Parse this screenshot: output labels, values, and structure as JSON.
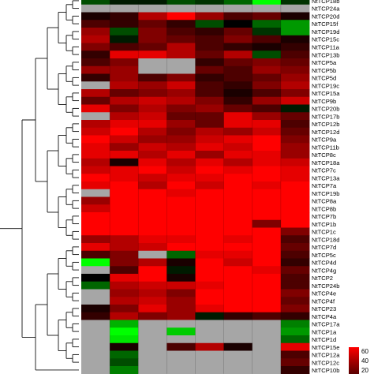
{
  "chart_data": {
    "type": "heatmap",
    "title": "",
    "xlabel": "",
    "ylabel": "",
    "missing_color": "#a6a6a6",
    "color_scale": {
      "low": "#00ff00",
      "mid": "#000000",
      "high": "#ff0000"
    },
    "legend": {
      "placement": "bottom-right",
      "ticks": [
        "60",
        "40",
        "20"
      ]
    },
    "rows": [
      {
        "label": "NtTCP18b",
        "values": [
          -0.3,
          -0.1,
          -0.1,
          -0.3,
          -0.2,
          -0.4,
          -1.0,
          -0.2
        ]
      },
      {
        "label": "NtTCP24a",
        "values": [
          null,
          null,
          null,
          null,
          null,
          null,
          null,
          null
        ]
      },
      {
        "label": "NtTCP20d",
        "values": [
          0.1,
          0.2,
          0.7,
          1.0,
          0.6,
          0.3,
          0.4,
          0.1
        ]
      },
      {
        "label": "NtTCP15f",
        "values": [
          0.3,
          0.2,
          0.4,
          0.2,
          -0.3,
          0.0,
          -0.4,
          -0.6
        ]
      },
      {
        "label": "NtTCP19d",
        "values": [
          0.6,
          -0.3,
          0.5,
          0.3,
          0.2,
          0.4,
          -0.2,
          -0.6
        ]
      },
      {
        "label": "NtTCP15c",
        "values": [
          0.7,
          -0.1,
          0.5,
          0.4,
          0.3,
          0.5,
          0.3,
          0.1
        ]
      },
      {
        "label": "NtTCP11a",
        "values": [
          0.5,
          0.3,
          0.4,
          0.7,
          0.3,
          0.2,
          0.1,
          0.2
        ]
      },
      {
        "label": "NtTCP13b",
        "values": [
          0.2,
          0.9,
          0.9,
          0.7,
          0.4,
          0.7,
          -0.3,
          0.3
        ]
      },
      {
        "label": "NtTCP5a",
        "values": [
          0.3,
          0.5,
          null,
          null,
          0.2,
          0.4,
          0.5,
          0.4
        ]
      },
      {
        "label": "NtTCP5b",
        "values": [
          0.6,
          0.6,
          null,
          null,
          0.4,
          0.3,
          0.6,
          0.5
        ]
      },
      {
        "label": "NtTCP5d",
        "values": [
          0.2,
          0.6,
          0.3,
          0.5,
          0.2,
          0.3,
          0.4,
          0.6
        ]
      },
      {
        "label": "NtTCP19c",
        "values": [
          null,
          0.7,
          0.6,
          0.8,
          0.3,
          0.2,
          0.5,
          0.7
        ]
      },
      {
        "label": "NtTCP15a",
        "values": [
          0.7,
          0.4,
          0.5,
          0.6,
          0.3,
          0.1,
          0.3,
          0.5
        ]
      },
      {
        "label": "NtTCP9b",
        "values": [
          0.4,
          0.7,
          0.8,
          0.7,
          0.5,
          0.2,
          0.6,
          0.8
        ]
      },
      {
        "label": "NtTCP20b",
        "values": [
          0.9,
          0.5,
          0.7,
          0.5,
          0.6,
          0.4,
          0.3,
          -0.1
        ]
      },
      {
        "label": "NtTCP17b",
        "values": [
          null,
          0.7,
          0.8,
          0.4,
          0.4,
          0.9,
          0.6,
          0.4
        ]
      },
      {
        "label": "NtTCP12b",
        "values": [
          0.7,
          0.9,
          0.9,
          0.6,
          0.4,
          0.9,
          0.9,
          0.3
        ]
      },
      {
        "label": "NtTCP12d",
        "values": [
          0.8,
          1.0,
          0.7,
          0.5,
          0.7,
          0.6,
          0.8,
          0.4
        ]
      },
      {
        "label": "NtTCP9a",
        "values": [
          1.0,
          0.8,
          0.6,
          0.6,
          0.8,
          0.9,
          1.0,
          0.5
        ]
      },
      {
        "label": "NtTCP11b",
        "values": [
          0.9,
          0.6,
          0.8,
          0.7,
          0.9,
          0.8,
          1.0,
          0.6
        ]
      },
      {
        "label": "NtTCP8c",
        "values": [
          0.9,
          0.9,
          0.7,
          0.9,
          0.6,
          0.9,
          0.9,
          0.6
        ]
      },
      {
        "label": "NtTCP18a",
        "values": [
          0.7,
          0.1,
          0.9,
          0.7,
          0.9,
          0.7,
          0.9,
          0.8
        ]
      },
      {
        "label": "NtTCP7c",
        "values": [
          0.8,
          0.9,
          1.0,
          0.8,
          1.0,
          0.9,
          1.0,
          0.9
        ]
      },
      {
        "label": "NtTCP13a",
        "values": [
          1.0,
          0.9,
          0.8,
          0.9,
          0.9,
          1.0,
          1.0,
          0.9
        ]
      },
      {
        "label": "NtTCP7a",
        "values": [
          0.9,
          1.0,
          0.7,
          1.0,
          0.8,
          1.0,
          0.9,
          1.0
        ]
      },
      {
        "label": "NtTCP19b",
        "values": [
          null,
          1.0,
          1.0,
          0.9,
          1.0,
          1.0,
          1.0,
          1.0
        ]
      },
      {
        "label": "NtTCP8a",
        "values": [
          0.6,
          1.0,
          1.0,
          1.0,
          1.0,
          1.0,
          1.0,
          1.0
        ]
      },
      {
        "label": "NtTCP8b",
        "values": [
          0.8,
          1.0,
          1.0,
          1.0,
          1.0,
          1.0,
          1.0,
          1.0
        ]
      },
      {
        "label": "NtTCP7b",
        "values": [
          1.0,
          1.0,
          1.0,
          1.0,
          1.0,
          1.0,
          1.0,
          1.0
        ]
      },
      {
        "label": "NtTCP1b",
        "values": [
          1.0,
          1.0,
          1.0,
          1.0,
          1.0,
          1.0,
          0.5,
          1.0
        ]
      },
      {
        "label": "NtTCP1c",
        "values": [
          1.0,
          1.0,
          1.0,
          1.0,
          1.0,
          1.0,
          1.0,
          0.5
        ]
      },
      {
        "label": "NtTCP18d",
        "values": [
          0.6,
          0.7,
          0.9,
          0.9,
          1.0,
          0.9,
          1.0,
          0.3
        ]
      },
      {
        "label": "NtTCP7d",
        "values": [
          0.9,
          0.7,
          0.8,
          1.0,
          1.0,
          1.0,
          1.0,
          0.4
        ]
      },
      {
        "label": "NtTCP5c",
        "values": [
          0.3,
          0.5,
          null,
          -0.4,
          0.9,
          0.9,
          1.0,
          0.3
        ]
      },
      {
        "label": "NtTCP4d",
        "values": [
          -1.0,
          0.5,
          0.7,
          0.1,
          1.0,
          0.8,
          1.0,
          0.2
        ]
      },
      {
        "label": "NtTCP4g",
        "values": [
          null,
          0.3,
          1.0,
          -0.1,
          1.0,
          1.0,
          0.9,
          0.4
        ]
      },
      {
        "label": "NtTCP2",
        "values": [
          0.0,
          0.9,
          1.0,
          0.1,
          1.0,
          1.0,
          1.0,
          0.3
        ]
      },
      {
        "label": "NtTCP24b",
        "values": [
          -0.4,
          0.7,
          0.8,
          0.8,
          0.9,
          1.0,
          1.0,
          0.3
        ]
      },
      {
        "label": "NtTCP4e",
        "values": [
          null,
          0.6,
          0.7,
          0.5,
          1.0,
          1.0,
          1.0,
          0.5
        ]
      },
      {
        "label": "NtTCP4f",
        "values": [
          null,
          0.7,
          0.8,
          0.6,
          1.0,
          1.0,
          1.0,
          0.4
        ]
      },
      {
        "label": "NtTCP23",
        "values": [
          0.1,
          0.5,
          0.9,
          0.6,
          0.9,
          1.0,
          1.0,
          0.5
        ]
      },
      {
        "label": "NtTCP4a",
        "values": [
          0.2,
          0.7,
          0.5,
          0.6,
          -0.1,
          0.2,
          0.3,
          0.2
        ]
      },
      {
        "label": "NtTCP17a",
        "values": [
          null,
          -0.7,
          null,
          null,
          null,
          null,
          null,
          -0.5
        ]
      },
      {
        "label": "NtTCP1a",
        "values": [
          null,
          -1.0,
          null,
          -0.8,
          null,
          null,
          null,
          -0.6
        ]
      },
      {
        "label": "NtTCP1d",
        "values": [
          null,
          -0.9,
          null,
          null,
          null,
          null,
          null,
          -0.4
        ]
      },
      {
        "label": "NtTCP15e",
        "values": [
          null,
          0.1,
          null,
          0.3,
          0.7,
          0.1,
          null,
          0.9
        ]
      },
      {
        "label": "NtTCP12a",
        "values": [
          null,
          -0.4,
          null,
          null,
          null,
          null,
          null,
          0.3
        ]
      },
      {
        "label": "NtTCP12c",
        "values": [
          null,
          -0.3,
          null,
          null,
          null,
          null,
          null,
          0.4
        ]
      },
      {
        "label": "NtTCP10b",
        "values": [
          null,
          -0.5,
          null,
          null,
          null,
          null,
          null,
          0.2
        ]
      }
    ]
  }
}
